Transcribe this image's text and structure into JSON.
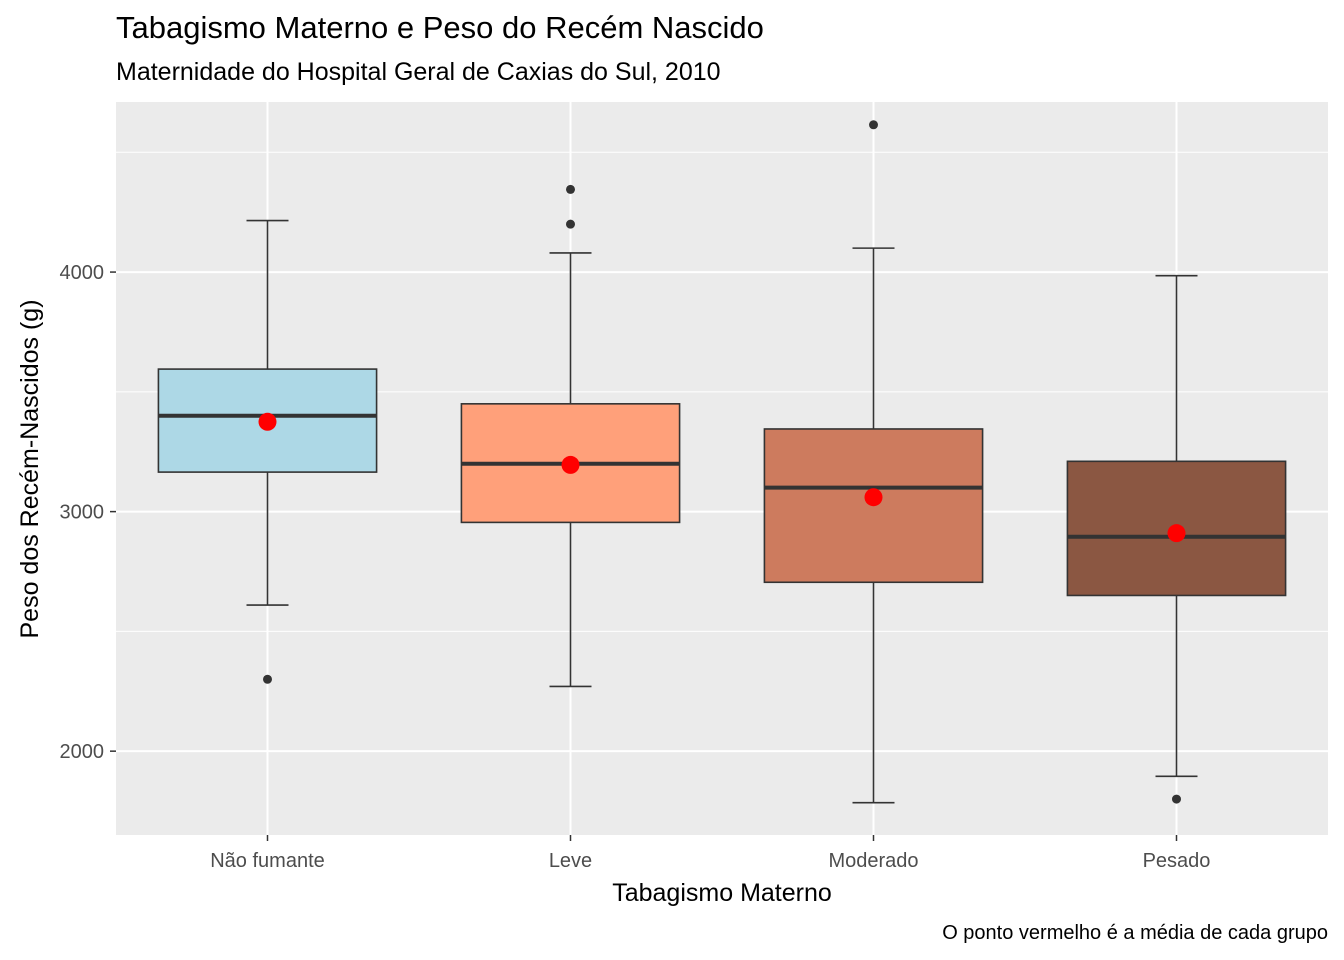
{
  "chart_data": {
    "type": "boxplot",
    "title": "Tabagismo Materno e Peso do Recém Nascido",
    "subtitle": "Maternidade do Hospital Geral de Caxias do Sul, 2010",
    "caption": "O ponto vermelho é a média de cada grupo",
    "xlabel": "Tabagismo Materno",
    "ylabel": "Peso dos Recém-Nascidos (g)",
    "ylim": [
      1650,
      4710
    ],
    "yticks": [
      2000,
      3000,
      4000
    ],
    "grid": true,
    "mean_color": "#ff0000",
    "panel_background": "#ebebeb",
    "categories": [
      "Não fumante",
      "Leve",
      "Moderado",
      "Pesado"
    ],
    "groups": [
      {
        "category": "Não fumante",
        "fill": "#add8e6",
        "whisker_low": 2610,
        "q1": 3165,
        "median": 3400,
        "q3": 3595,
        "whisker_high": 4215,
        "mean": 3375,
        "outliers": [
          2300
        ]
      },
      {
        "category": "Leve",
        "fill": "#ffa07a",
        "whisker_low": 2270,
        "q1": 2955,
        "median": 3200,
        "q3": 3450,
        "whisker_high": 4080,
        "mean": 3195,
        "outliers": [
          4200,
          4345
        ]
      },
      {
        "category": "Moderado",
        "fill": "#cd7b5e",
        "whisker_low": 1785,
        "q1": 2705,
        "median": 3100,
        "q3": 3345,
        "whisker_high": 4100,
        "mean": 3060,
        "outliers": [
          4615
        ]
      },
      {
        "category": "Pesado",
        "fill": "#8b5742",
        "whisker_low": 1895,
        "q1": 2650,
        "median": 2895,
        "q3": 3210,
        "whisker_high": 3985,
        "mean": 2910,
        "outliers": [
          1800
        ]
      }
    ]
  }
}
